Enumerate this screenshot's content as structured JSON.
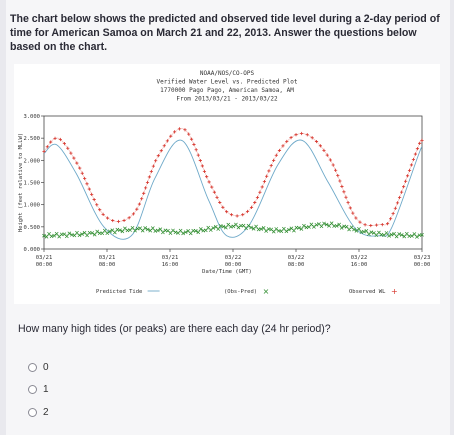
{
  "intro_text": "The chart below shows the predicted and observed tide level during a 2-day period of time for American Samoa on March 21 and 22, 2013. Answer the questions below based on the chart.",
  "chart_data": {
    "type": "line",
    "title_lines": [
      "NOAA/NOS/CO-OPS",
      "Verified Water Level vs. Predicted Plot",
      "1770000 Pago Pago, American Samoa, AM",
      "From 2013/03/21 - 2013/03/22"
    ],
    "ylabel": "Height (feet relative to MLLW)",
    "xlabel": "Date/Time (GMT)",
    "ylim": [
      0,
      3
    ],
    "y_ticks": [
      "0.000",
      "0.500",
      "1.000",
      "1.500",
      "2.000",
      "2.500",
      "3.000"
    ],
    "x_ticks": [
      {
        "hours": 0,
        "line1": "03/21",
        "line2": "00:00"
      },
      {
        "hours": 8,
        "line1": "03/21",
        "line2": "08:00"
      },
      {
        "hours": 16,
        "line1": "03/21",
        "line2": "16:00"
      },
      {
        "hours": 24,
        "line1": "03/22",
        "line2": "00:00"
      },
      {
        "hours": 32,
        "line1": "03/22",
        "line2": "08:00"
      },
      {
        "hours": 40,
        "line1": "03/22",
        "line2": "16:00"
      },
      {
        "hours": 48,
        "line1": "03/23",
        "line2": "00:00"
      }
    ],
    "x_range_hours": [
      0,
      48
    ],
    "series": [
      {
        "name": "Predicted Tide",
        "color": "#6ea9c9",
        "marker": "line",
        "x": [
          0,
          1.6,
          4.1,
          7.6,
          11.1,
          14.1,
          17.5,
          20.9,
          23.2,
          26.1,
          29.7,
          32.8,
          36.1,
          39.6,
          42.7,
          44.2,
          47.5,
          48
        ],
        "y": [
          2.15,
          2.35,
          1.7,
          0.5,
          0.3,
          1.6,
          2.45,
          1.1,
          0.3,
          0.55,
          1.9,
          2.45,
          1.5,
          0.45,
          0.3,
          0.5,
          2.1,
          2.3
        ]
      },
      {
        "name": "Observed WL",
        "color": "#d6332a",
        "marker": "+",
        "x": [
          0,
          1.8,
          4.3,
          7.7,
          11.4,
          14.5,
          17.8,
          21.0,
          23.5,
          26.4,
          29.8,
          33.0,
          36.4,
          39.6,
          42.7,
          44.2,
          47.5,
          48
        ],
        "y": [
          2.2,
          2.5,
          1.9,
          0.75,
          0.8,
          2.1,
          2.7,
          1.5,
          0.8,
          0.95,
          2.2,
          2.6,
          2.0,
          0.7,
          0.55,
          0.75,
          2.3,
          2.45
        ]
      },
      {
        "name": "(Obs-Pred)",
        "color": "#2a8a2a",
        "marker": "x",
        "x": [
          0,
          6,
          12,
          18,
          24,
          30,
          36,
          42,
          48
        ],
        "y": [
          0.3,
          0.35,
          0.45,
          0.38,
          0.52,
          0.42,
          0.55,
          0.35,
          0.3
        ]
      }
    ],
    "legend": [
      {
        "label": "Predicted Tide",
        "symbol": "—"
      },
      {
        "label": "(Obs-Pred)",
        "symbol": "×"
      },
      {
        "label": "Observed WL",
        "symbol": "+"
      }
    ]
  },
  "question": {
    "text": "How many high tides (or peaks) are there each day (24 hr period)?",
    "options": [
      {
        "label": "0"
      },
      {
        "label": "1"
      },
      {
        "label": "2"
      }
    ]
  }
}
